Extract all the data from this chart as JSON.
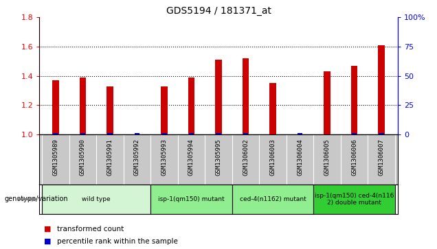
{
  "title": "GDS5194 / 181371_at",
  "samples": [
    "GSM1305989",
    "GSM1305990",
    "GSM1305991",
    "GSM1305992",
    "GSM1305993",
    "GSM1305994",
    "GSM1305995",
    "GSM1306002",
    "GSM1306003",
    "GSM1306004",
    "GSM1306005",
    "GSM1306006",
    "GSM1306007"
  ],
  "red_values": [
    1.37,
    1.39,
    1.33,
    1.0,
    1.33,
    1.39,
    1.51,
    1.52,
    1.35,
    1.0,
    1.43,
    1.47,
    1.61
  ],
  "blue_values": [
    1.0,
    1.0,
    1.0,
    1.01,
    1.0,
    1.0,
    1.0,
    1.0,
    1.0,
    1.0,
    1.0,
    1.0,
    1.0
  ],
  "blue_show": [
    true,
    true,
    true,
    true,
    true,
    true,
    true,
    true,
    false,
    true,
    false,
    true,
    true
  ],
  "ylim_left": [
    1.0,
    1.8
  ],
  "ylim_right": [
    0,
    100
  ],
  "yticks_left": [
    1.0,
    1.2,
    1.4,
    1.6,
    1.8
  ],
  "yticks_right": [
    0,
    25,
    50,
    75,
    100
  ],
  "ytick_right_labels": [
    "0",
    "25",
    "50",
    "75",
    "100%"
  ],
  "gridlines": [
    1.2,
    1.4,
    1.6
  ],
  "groups": [
    {
      "label": "wild type",
      "start": 0,
      "end": 3,
      "color": "#d4f5d4"
    },
    {
      "label": "isp-1(qm150) mutant",
      "start": 4,
      "end": 6,
      "color": "#90ee90"
    },
    {
      "label": "ced-4(n1162) mutant",
      "start": 7,
      "end": 9,
      "color": "#90ee90"
    },
    {
      "label": "isp-1(qm150) ced-4(n116\n2) double mutant",
      "start": 10,
      "end": 12,
      "color": "#32cd32"
    }
  ],
  "legend_red": "transformed count",
  "legend_blue": "percentile rank within the sample",
  "genotype_label": "genotype/variation",
  "red_bar_width": 0.25,
  "blue_bar_width": 0.18,
  "red_color": "#cc0000",
  "blue_color": "#0000cc",
  "plot_bg": "#ffffff",
  "sample_area_bg": "#c8c8c8",
  "baseline": 1.0
}
